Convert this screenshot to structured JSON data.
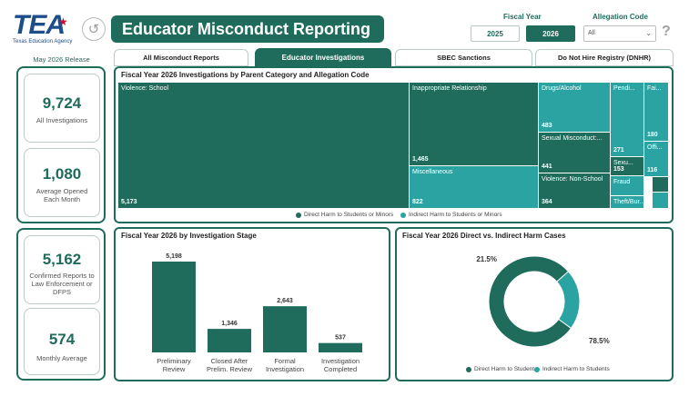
{
  "header": {
    "logo_text": "TEA",
    "logo_subtitle": "Texas Education Agency",
    "title": "Educator Misconduct Reporting",
    "back_glyph": "↺",
    "fiscal_year_label": "Fiscal Year",
    "fiscal_years": [
      "2025",
      "2026"
    ],
    "fiscal_year_selected": "2026",
    "allegation_label": "Allegation Code",
    "allegation_value": "All",
    "help_glyph": "?"
  },
  "release": "May 2026 Release",
  "kpis": {
    "all_investigations": {
      "value": "9,724",
      "label": "All Investigations"
    },
    "avg_opened": {
      "value": "1,080",
      "label": "Average Opened Each Month"
    },
    "confirmed_reports": {
      "value": "5,162",
      "label": "Confirmed Reports to Law Enforcement or DFPS"
    },
    "monthly_avg": {
      "value": "574",
      "label": "Monthly Average"
    }
  },
  "tabs": [
    {
      "label": "All Misconduct Reports",
      "active": false
    },
    {
      "label": "Educator Investigations",
      "active": true
    },
    {
      "label": "SBEC Sanctions",
      "active": false
    },
    {
      "label": "Do Not Hire Registry (DNHR)",
      "active": false
    }
  ],
  "colors": {
    "direct": "#1f6b5c",
    "indirect": "#2ba3a3",
    "accent": "#1f6b5c"
  },
  "treemap": {
    "title": "Fiscal Year 2026 Investigations by Parent Category and Allegation Code",
    "cells": [
      {
        "name": "Violence: School",
        "value": "5,173",
        "type": "direct"
      },
      {
        "name": "Inappropriate Relationship",
        "value": "1,465",
        "type": "direct"
      },
      {
        "name": "Miscellaneous",
        "value": "822",
        "type": "indirect"
      },
      {
        "name": "Drugs/Alcohol",
        "value": "483",
        "type": "indirect"
      },
      {
        "name": "Sexual Misconduct:...",
        "value": "441",
        "type": "direct"
      },
      {
        "name": "Violence: Non-School",
        "value": "364",
        "type": "direct"
      },
      {
        "name": "Pendi...",
        "value": "271",
        "type": "indirect"
      },
      {
        "name": "Fai...",
        "value": "180",
        "type": "indirect"
      },
      {
        "name": "Sexu...",
        "value": "153",
        "type": "direct"
      },
      {
        "name": "Offi...",
        "value": "116",
        "type": "indirect"
      },
      {
        "name": "Fraud",
        "value": "",
        "type": "indirect"
      },
      {
        "name": "Theft/Bur...",
        "value": "",
        "type": "indirect"
      },
      {
        "name": "",
        "value": "",
        "type": "direct"
      },
      {
        "name": "",
        "value": "",
        "type": "indirect"
      }
    ],
    "legend": [
      "Direct Harm to Students or Minors",
      "Indirect Harm to Students or Minors"
    ]
  },
  "chart_data": [
    {
      "type": "bar",
      "title": "Fiscal Year 2026 by Investigation Stage",
      "categories": [
        "Preliminary Review",
        "Closed After Prelim. Review",
        "Formal Investigation",
        "Investigation Completed"
      ],
      "values": [
        5198,
        1346,
        2643,
        537
      ],
      "labels": [
        "5,198",
        "1,346",
        "2,643",
        "537"
      ],
      "color": "#1f6b5c"
    },
    {
      "type": "pie",
      "title": "Fiscal Year 2026 Direct vs. Indirect Harm Cases",
      "categories": [
        "Direct Harm to Students",
        "Indirect Harm to Students"
      ],
      "values": [
        78.5,
        21.5
      ],
      "labels": [
        "78.5%",
        "21.5%"
      ],
      "colors": [
        "#1f6b5c",
        "#2ba3a3"
      ]
    }
  ]
}
